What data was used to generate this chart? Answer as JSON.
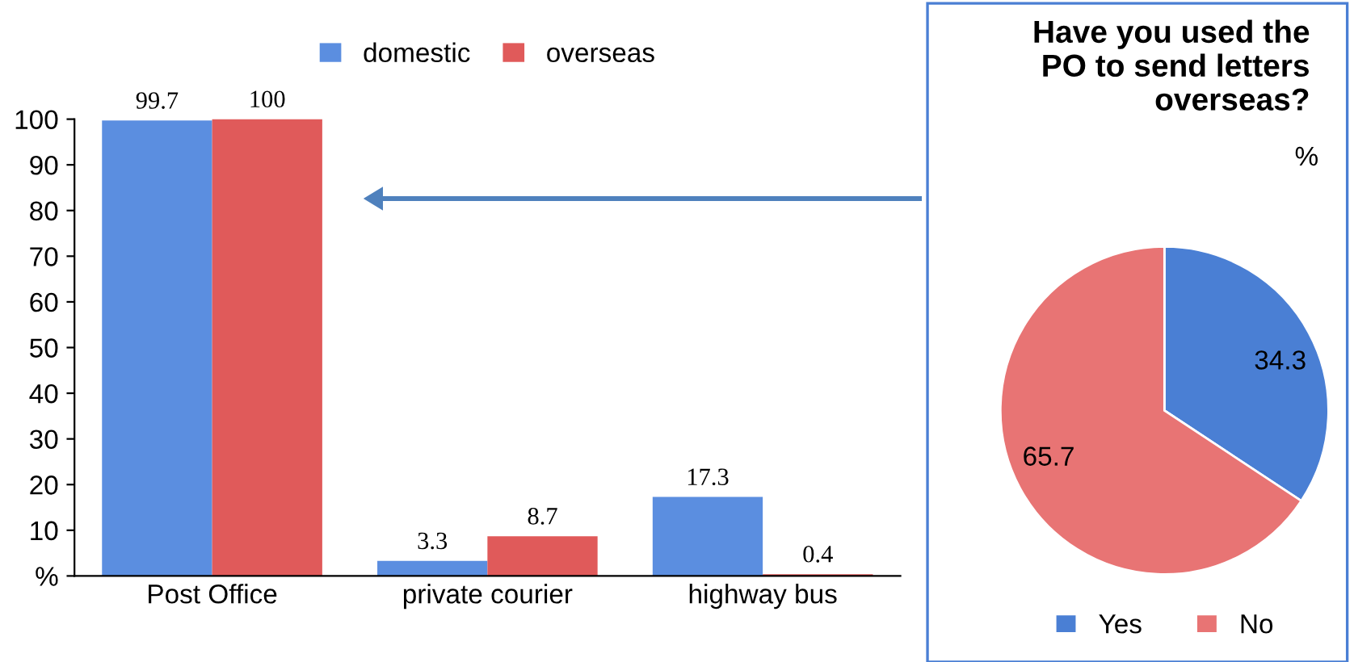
{
  "chart_data": [
    {
      "type": "bar",
      "categories": [
        "Post Office",
        "private courier",
        "highway bus"
      ],
      "series": [
        {
          "name": "domestic",
          "color": "#5b8ee0",
          "values": [
            99.7,
            3.3,
            17.3
          ]
        },
        {
          "name": "overseas",
          "color": "#e05a5a",
          "values": [
            100,
            8.7,
            0.4
          ]
        }
      ],
      "ylim": [
        0,
        100
      ],
      "yticks": [
        {
          "value": 0,
          "label": "%"
        },
        10,
        20,
        30,
        40,
        50,
        60,
        70,
        80,
        90,
        100
      ],
      "data_labels": true,
      "legend": "top",
      "grid": false
    },
    {
      "type": "pie",
      "title": "Have you used the\nPO to send letters\noverseas?",
      "annotations": [
        "%"
      ],
      "categories": [
        "Yes",
        "No"
      ],
      "values": [
        34.3,
        65.7
      ],
      "colors": [
        "#4a7fd4",
        "#e87474"
      ],
      "data_labels": true,
      "legend": "bottom"
    }
  ]
}
